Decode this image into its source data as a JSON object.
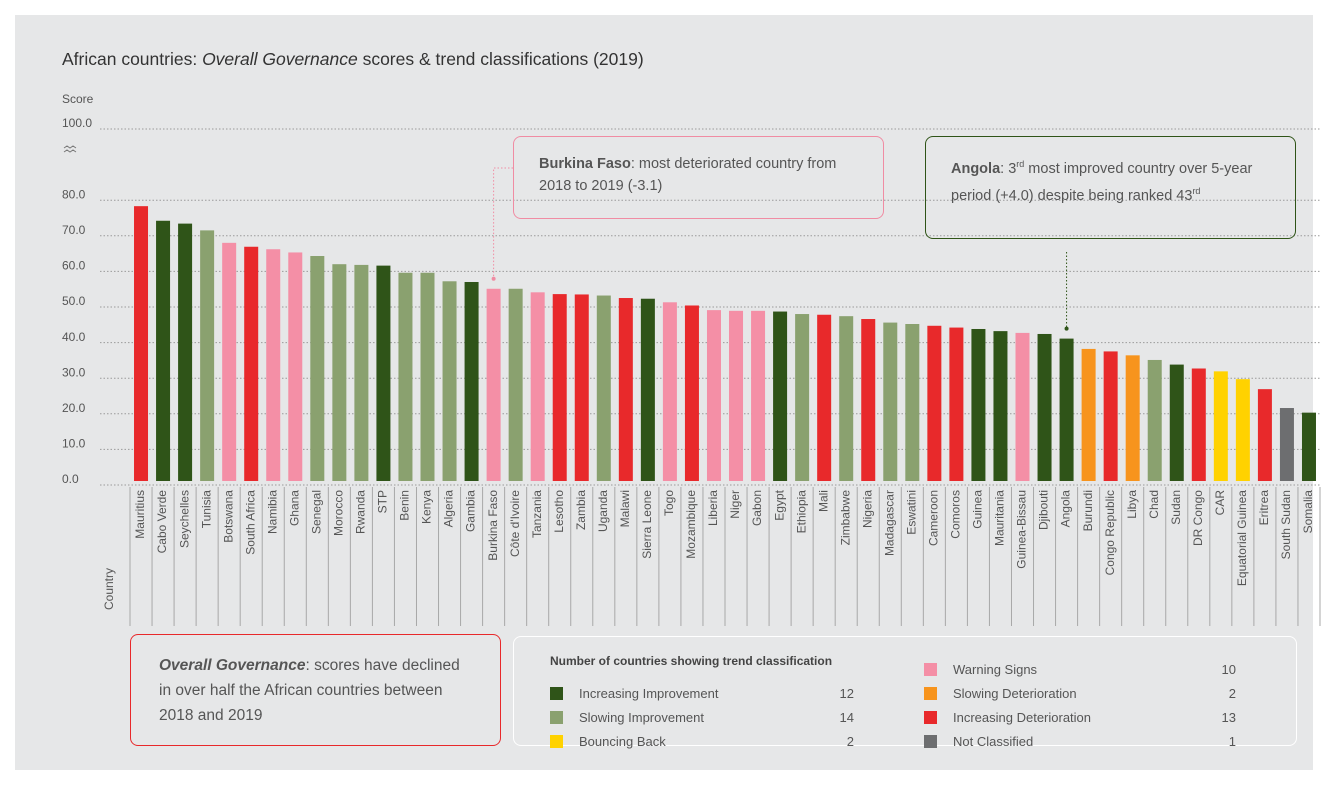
{
  "chart_data": {
    "type": "bar",
    "title": {
      "prefix": "African countries: ",
      "emphasis": "Overall Governance",
      "suffix": " scores & trend classifications (2019)"
    },
    "y_label": "Score",
    "x_label": "Country",
    "ylim": [
      0,
      100
    ],
    "yticks": [
      {
        "value": 0,
        "label": "0.0"
      },
      {
        "value": 10,
        "label": "10.0"
      },
      {
        "value": 20,
        "label": "20.0"
      },
      {
        "value": 30,
        "label": "30.0"
      },
      {
        "value": 40,
        "label": "40.0"
      },
      {
        "value": 50,
        "label": "50.0"
      },
      {
        "value": 60,
        "label": "60.0"
      },
      {
        "value": 70,
        "label": "70.0"
      },
      {
        "value": 80,
        "label": "80.0"
      },
      {
        "value": 100,
        "label": "100.0"
      }
    ],
    "grid": true,
    "categories": [
      "Mauritius",
      "Cabo Verde",
      "Seychelles",
      "Tunisia",
      "Botswana",
      "South Africa",
      "Namibia",
      "Ghana",
      "Senegal",
      "Morocco",
      "Rwanda",
      "STP",
      "Benin",
      "Kenya",
      "Algeria",
      "Gambia",
      "Burkina Faso",
      "Côte d'Ivoire",
      "Tanzania",
      "Lesotho",
      "Zambia",
      "Uganda",
      "Malawi",
      "Sierra Leone",
      "Togo",
      "Mozambique",
      "Liberia",
      "Niger",
      "Gabon",
      "Egypt",
      "Ethiopia",
      "Mali",
      "Zimbabwe",
      "Nigeria",
      "Madagascar",
      "Eswatini",
      "Cameroon",
      "Comoros",
      "Guinea",
      "Mauritania",
      "Guinea-Bissau",
      "Djibouti",
      "Angola",
      "Burundi",
      "Congo Republic",
      "Libya",
      "Chad",
      "Sudan",
      "DR Congo",
      "CAR",
      "Equatorial Guinea",
      "Eritrea",
      "South Sudan",
      "Somalia"
    ],
    "values": [
      77.2,
      73.1,
      72.3,
      70.4,
      66.9,
      65.8,
      65.1,
      64.2,
      63.2,
      60.9,
      60.7,
      60.5,
      58.5,
      58.5,
      56.1,
      55.9,
      54.0,
      54.0,
      53.0,
      52.5,
      52.4,
      52.1,
      51.4,
      51.2,
      50.2,
      49.3,
      48.0,
      47.8,
      47.8,
      47.6,
      46.9,
      46.7,
      46.3,
      45.5,
      44.5,
      44.1,
      43.6,
      43.1,
      42.7,
      42.1,
      41.6,
      41.3,
      40.0,
      37.1,
      36.4,
      35.3,
      34.0,
      32.7,
      31.6,
      30.8,
      28.6,
      25.8,
      20.5,
      19.2
    ],
    "bar_colors": [
      "#e8292b",
      "#2f5418",
      "#2f5418",
      "#8aa16f",
      "#f48fa6",
      "#e8292b",
      "#f48fa6",
      "#f48fa6",
      "#8aa16f",
      "#8aa16f",
      "#8aa16f",
      "#2f5418",
      "#8aa16f",
      "#8aa16f",
      "#8aa16f",
      "#2f5418",
      "#f48fa6",
      "#8aa16f",
      "#f48fa6",
      "#e8292b",
      "#e8292b",
      "#8aa16f",
      "#e8292b",
      "#2f5418",
      "#f48fa6",
      "#e8292b",
      "#f48fa6",
      "#f48fa6",
      "#f48fa6",
      "#2f5418",
      "#8aa16f",
      "#e8292b",
      "#8aa16f",
      "#e8292b",
      "#8aa16f",
      "#8aa16f",
      "#e8292b",
      "#e8292b",
      "#2f5418",
      "#2f5418",
      "#f48fa6",
      "#2f5418",
      "#2f5418",
      "#f7941d",
      "#e8292b",
      "#f7941d",
      "#8aa16f",
      "#2f5418",
      "#e8292b",
      "#ffd200",
      "#ffd200",
      "#e8292b",
      "#6d6e70",
      "#2f5418"
    ],
    "legend": {
      "title": "Number of countries showing trend classification",
      "items": [
        {
          "name": "Increasing Improvement",
          "color": "#2f5418",
          "count": 12
        },
        {
          "name": "Slowing Improvement",
          "color": "#8aa16f",
          "count": 14
        },
        {
          "name": "Bouncing Back",
          "color": "#ffd200",
          "count": 2
        },
        {
          "name": "Warning Signs",
          "color": "#f48fa6",
          "count": 10
        },
        {
          "name": "Slowing Deterioration",
          "color": "#f7941d",
          "count": 2
        },
        {
          "name": "Increasing Deterioration",
          "color": "#e8292b",
          "count": 13
        },
        {
          "name": "Not Classified",
          "color": "#6d6e70",
          "count": 1
        }
      ]
    },
    "annotations": [
      {
        "bold": "Burkina Faso",
        "text": ": most deteriorated country from 2018 to 2019 (-3.1)"
      },
      {
        "bold": "Angola",
        "text": ": 3",
        "sup1": "rd",
        "text2": " most improved country over 5-year period (+4.0) despite being ranked 43",
        "sup2": "rd"
      }
    ],
    "summary": {
      "emphasis": "Overall Governance",
      "text": ": scores have declined in over half the African countries between 2018 and 2019"
    }
  }
}
